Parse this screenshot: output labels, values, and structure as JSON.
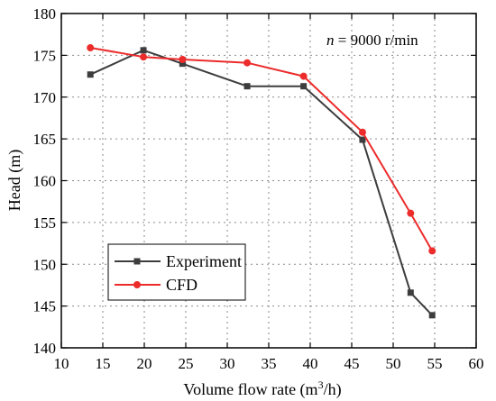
{
  "chart_data": {
    "type": "line",
    "title": "",
    "xlabel": "Volume flow rate (m",
    "xlabel_sup": "3",
    "xlabel_tail": "/h)",
    "ylabel": "Head (m)",
    "xlim": [
      10,
      60
    ],
    "ylim": [
      140,
      180
    ],
    "xticks": [
      "10",
      "15",
      "20",
      "25",
      "30",
      "35",
      "40",
      "45",
      "50",
      "55",
      "60"
    ],
    "yticks": [
      "140",
      "145",
      "150",
      "155",
      "160",
      "165",
      "170",
      "175",
      "180"
    ],
    "grid": true,
    "legend_position": "bottom-left",
    "annotation": {
      "italic": "n",
      "rest": " = 9000 r/min"
    },
    "series": [
      {
        "name": "Experiment",
        "color": "#3d3d3d",
        "marker": "square",
        "x": [
          13.5,
          19.9,
          24.6,
          32.4,
          39.2,
          46.3,
          52.1,
          54.7
        ],
        "y": [
          172.7,
          175.6,
          174.0,
          171.3,
          171.3,
          164.9,
          146.6,
          143.9
        ]
      },
      {
        "name": "CFD",
        "color": "#ec2b2b",
        "marker": "circle",
        "x": [
          13.5,
          19.9,
          24.6,
          32.4,
          39.2,
          46.3,
          52.1,
          54.7
        ],
        "y": [
          175.9,
          174.8,
          174.5,
          174.1,
          172.5,
          165.8,
          156.1,
          151.6
        ]
      }
    ]
  }
}
